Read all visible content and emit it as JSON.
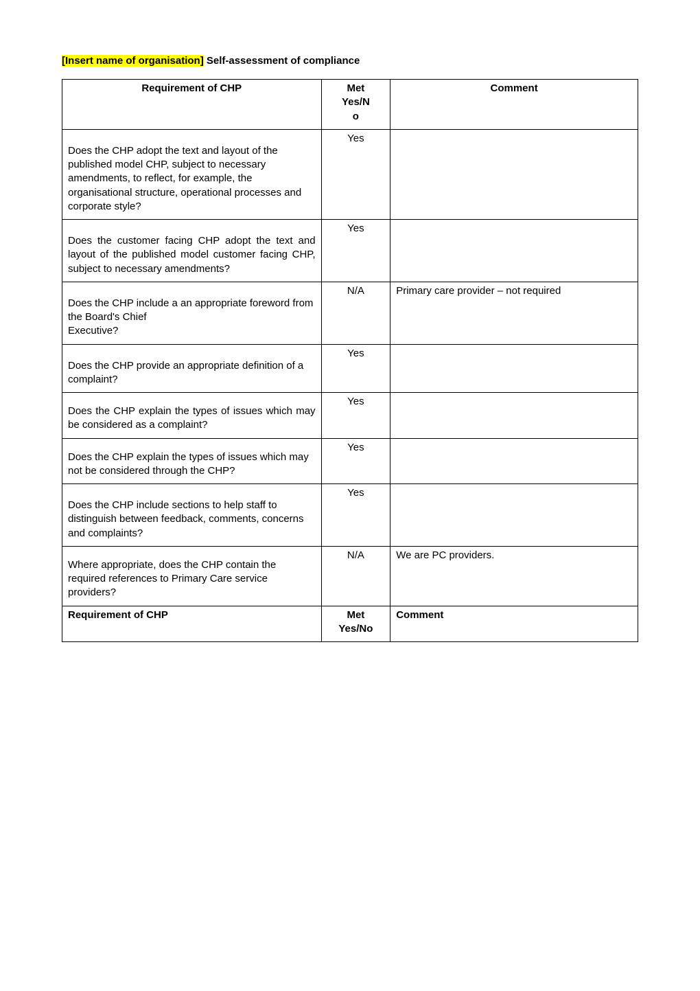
{
  "title": {
    "highlighted": "[Insert name of organisation]",
    "rest": " Self-assessment of compliance"
  },
  "header_row": {
    "requirement": "Requirement of CHP",
    "met": "Met Yes/No",
    "comment": "Comment"
  },
  "met_label_line1": "Met",
  "met_label_line2": "Yes/N",
  "met_label_line3": "o",
  "rows": [
    {
      "req": "Does the CHP adopt the text and layout of the published model CHP, subject to necessary amendments, to reflect, for example, the organisational structure, operational processes and corporate style?",
      "met": "Yes",
      "comment": "",
      "justify": false
    },
    {
      "req": "Does the customer facing CHP adopt the text and layout of the published model customer facing CHP, subject to necessary amendments?",
      "met": "Yes",
      "comment": "",
      "justify": true
    },
    {
      "req": "Does the CHP include a an appropriate foreword from the Board's Chief\nExecutive?",
      "met": "N/A",
      "comment": "Primary care provider – not required",
      "justify": false
    },
    {
      "req": "Does the CHP provide an appropriate definition of a complaint?",
      "met": "Yes",
      "comment": "",
      "justify": false
    },
    {
      "req": "Does the CHP explain the types of issues which may be considered as a complaint?",
      "met": "Yes",
      "comment": "",
      "justify": true
    },
    {
      "req": "Does the CHP explain the types of issues which may not be considered through the CHP?",
      "met": "Yes",
      "comment": "",
      "justify": false
    },
    {
      "req": "Does the CHP include sections to help staff to distinguish between feedback, comments, concerns and complaints?",
      "met": "Yes",
      "comment": "",
      "justify": false
    },
    {
      "req": "Where appropriate, does the CHP contain the required references to Primary Care service providers?",
      "met": "N/A",
      "comment": "We are PC providers.",
      "justify": false
    }
  ],
  "footer_row": {
    "requirement": "Requirement of CHP",
    "met_line1": "Met",
    "met_line2": "Yes/No",
    "comment": "Comment"
  }
}
